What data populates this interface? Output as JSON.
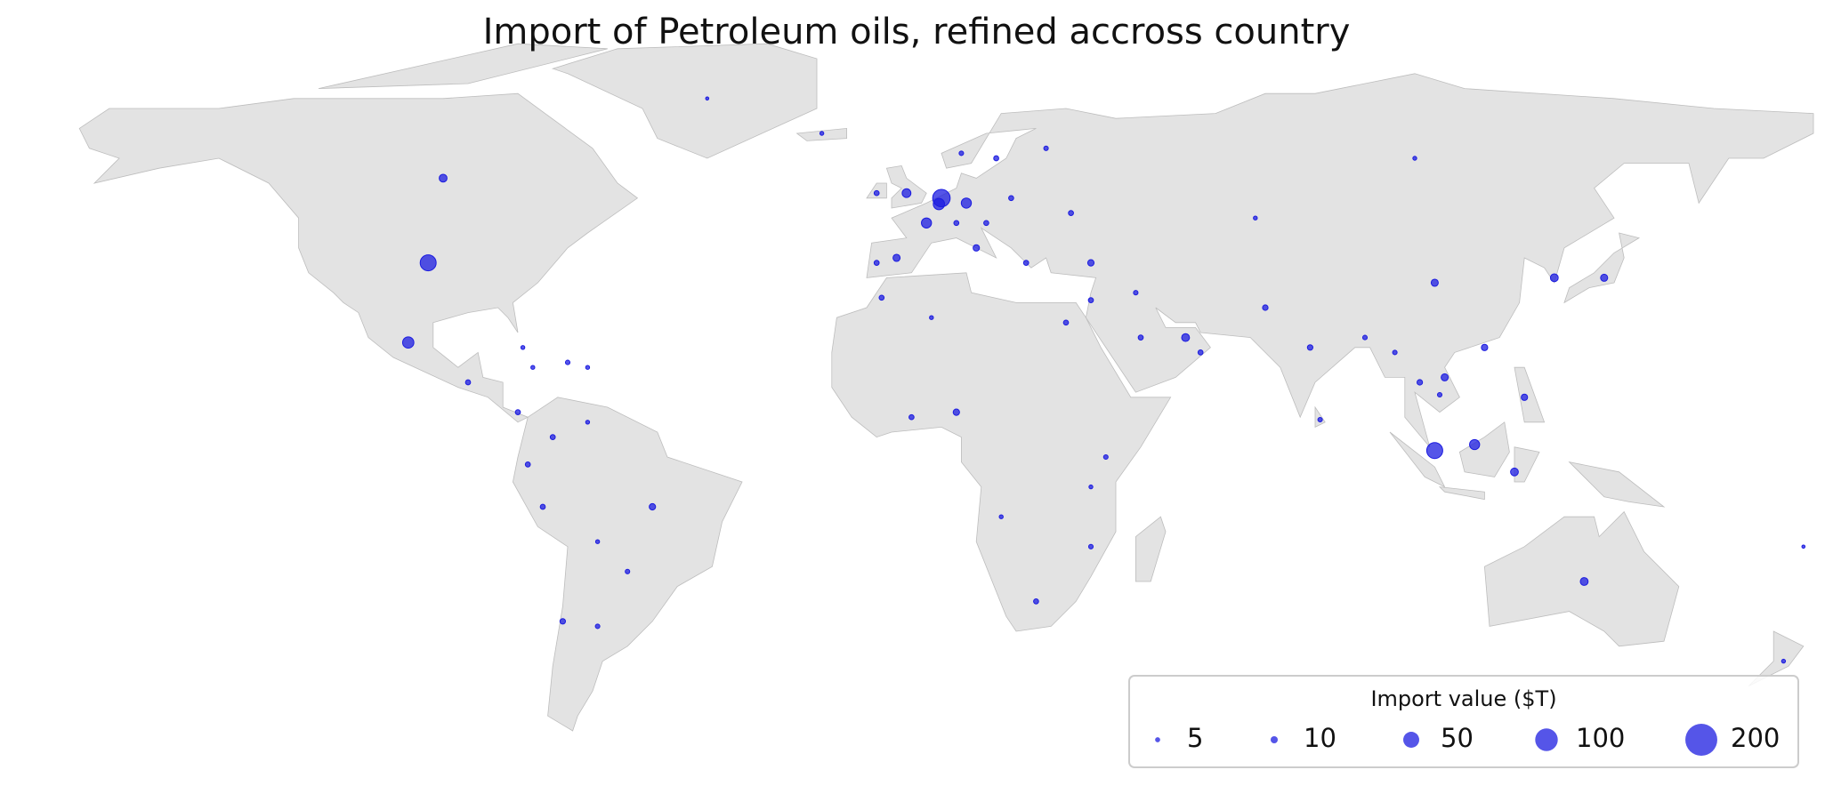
{
  "chart_data": {
    "type": "bubble-map",
    "title": "Import of Petroleum oils, refined accross country",
    "color": "#1c1ce0",
    "lon": [
      -98,
      -102,
      -95,
      5,
      4.5,
      -2,
      2,
      10,
      -4,
      104,
      112,
      120,
      134,
      104,
      138,
      128,
      106,
      122,
      114,
      101,
      79,
      70,
      54,
      45,
      57,
      35,
      30,
      -53,
      -75,
      -73,
      -71,
      -64,
      8,
      -1,
      -7,
      3,
      12,
      19,
      16,
      9,
      26,
      -8,
      -8,
      8,
      14,
      22,
      31,
      100,
      68,
      -90,
      -80,
      -70,
      -66,
      -66,
      -78,
      -64,
      -58,
      38,
      35,
      24,
      35,
      17,
      81,
      90,
      44,
      35,
      -79,
      -77,
      174,
      -19,
      -42,
      178,
      105,
      96
    ],
    "lat": [
      39,
      23,
      56,
      52,
      50.8,
      53,
      47,
      51,
      40,
      1.3,
      2.5,
      -3,
      -25,
      35,
      36,
      36,
      16,
      12,
      22,
      15,
      22,
      30,
      24,
      24,
      21,
      39,
      27,
      -10,
      -10,
      4,
      -33,
      -34,
      9,
      8,
      32,
      28,
      42,
      52,
      60,
      61,
      62,
      53,
      39,
      47,
      47,
      39,
      49,
      60,
      48,
      15,
      9,
      19,
      18,
      7,
      -1.5,
      -17,
      -23,
      0,
      -6,
      -29,
      -18,
      -12,
      7.5,
      24,
      33,
      31.5,
      22,
      18,
      -41,
      65,
      72,
      -18,
      12.5,
      21
    ],
    "values": [
      50,
      25,
      12,
      60,
      25,
      15,
      20,
      20,
      10,
      50,
      20,
      12,
      12,
      10,
      10,
      12,
      10,
      8,
      8,
      6,
      6,
      6,
      12,
      5,
      5,
      8,
      5,
      8,
      5,
      5,
      6,
      4,
      8,
      5,
      5,
      3,
      8,
      5,
      5,
      4,
      4,
      5,
      5,
      5,
      5,
      5,
      5,
      3,
      3,
      5,
      5,
      4,
      3,
      3,
      5,
      3,
      4,
      4,
      3,
      5,
      4,
      3,
      4,
      4,
      4,
      5,
      3,
      3,
      3,
      3,
      2,
      2,
      4,
      4
    ],
    "size_legend": {
      "title": "Import value ($T)",
      "values": [
        5,
        10,
        50,
        100,
        200
      ]
    }
  }
}
